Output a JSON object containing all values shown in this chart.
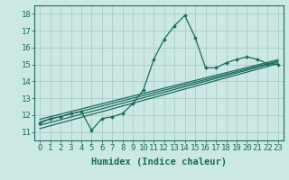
{
  "title": "",
  "xlabel": "Humidex (Indice chaleur)",
  "xlim": [
    -0.5,
    23.5
  ],
  "ylim": [
    10.5,
    18.5
  ],
  "yticks": [
    11,
    12,
    13,
    14,
    15,
    16,
    17,
    18
  ],
  "xticks": [
    0,
    1,
    2,
    3,
    4,
    5,
    6,
    7,
    8,
    9,
    10,
    11,
    12,
    13,
    14,
    15,
    16,
    17,
    18,
    19,
    20,
    21,
    22,
    23
  ],
  "bg_color": "#cce8e4",
  "grid_color": "#aaccc8",
  "line_color": "#1a6b5a",
  "data_line": [
    11.5,
    11.8,
    11.9,
    12.1,
    12.2,
    11.1,
    11.8,
    11.9,
    12.1,
    12.7,
    13.5,
    15.3,
    16.5,
    17.3,
    17.9,
    16.6,
    14.8,
    14.8,
    15.1,
    15.3,
    15.45,
    15.3,
    15.05,
    15.0
  ],
  "reg_lines": [
    {
      "start": 11.2,
      "end": 15.05
    },
    {
      "start": 11.4,
      "end": 15.15
    },
    {
      "start": 11.6,
      "end": 15.2
    },
    {
      "start": 11.75,
      "end": 15.28
    }
  ],
  "tick_fontsize": 6.5,
  "label_fontsize": 7.5
}
